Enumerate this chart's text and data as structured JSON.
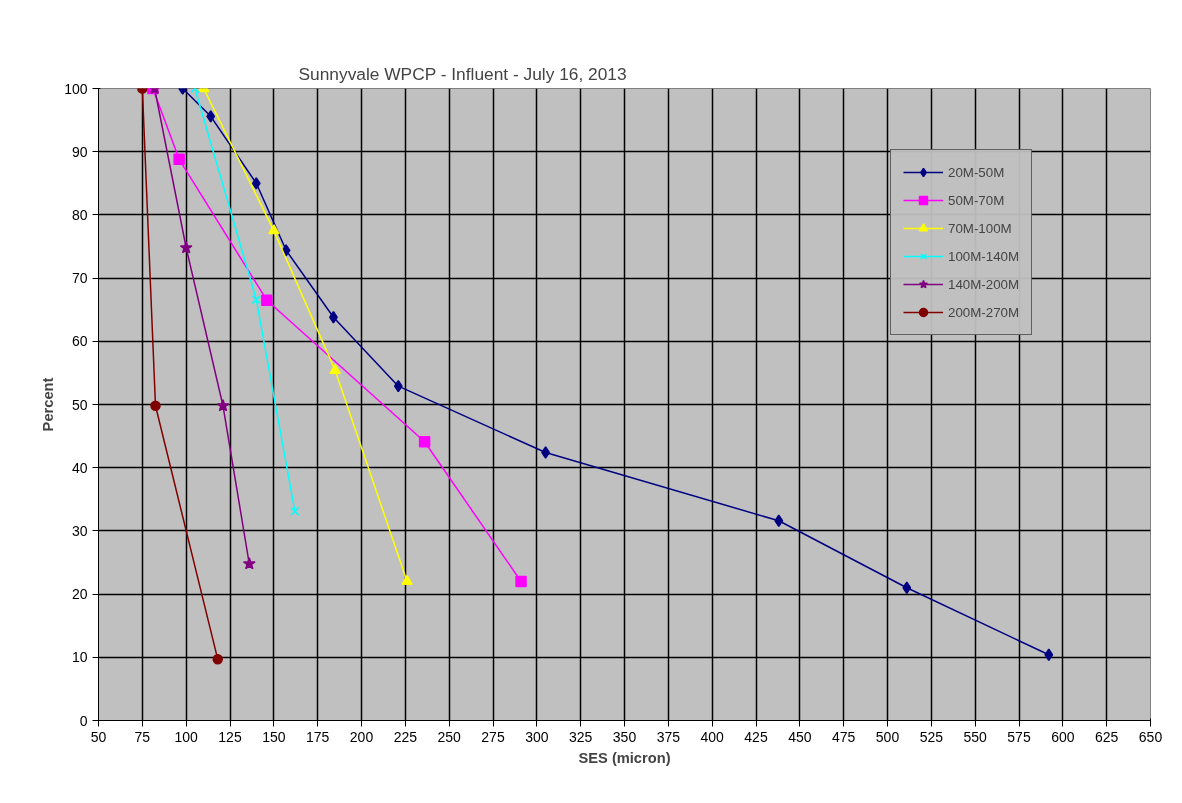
{
  "chart_data": {
    "type": "line",
    "title": "Sunnyvale WPCP - Influent - July 16, 2013",
    "xlabel": "SES (micron)",
    "ylabel": "Percent",
    "xlim": [
      50,
      650
    ],
    "xticks": [
      50,
      75,
      100,
      125,
      150,
      175,
      200,
      225,
      250,
      275,
      300,
      325,
      350,
      375,
      400,
      425,
      450,
      475,
      500,
      525,
      550,
      575,
      600,
      625,
      650
    ],
    "ylim": [
      0,
      100
    ],
    "yticks": [
      0,
      10,
      20,
      30,
      40,
      50,
      60,
      70,
      80,
      90,
      100
    ],
    "grid": true,
    "legend": "top right",
    "series": [
      {
        "name": "20M-50M",
        "color": "#000080",
        "marker": "diamond",
        "x": [
          98,
          114,
          140,
          157,
          184,
          221,
          305,
          438,
          511,
          592
        ],
        "values": [
          100,
          95.6,
          85,
          74.4,
          63.8,
          52.9,
          42.4,
          31.6,
          21,
          10.4
        ]
      },
      {
        "name": "50M-70M",
        "color": "#ff00ff",
        "marker": "square",
        "x": [
          81,
          96,
          146,
          236,
          291
        ],
        "values": [
          100,
          88.8,
          66.5,
          44.1,
          22
        ]
      },
      {
        "name": "70M-100M",
        "color": "#ffff00",
        "marker": "triangle",
        "x": [
          110,
          150,
          185,
          226
        ],
        "values": [
          100,
          77.5,
          55.4,
          22
        ]
      },
      {
        "name": "100M-140M",
        "color": "#00ffff",
        "marker": "cross",
        "x": [
          105,
          140,
          162
        ],
        "values": [
          100,
          66.6,
          33.1
        ]
      },
      {
        "name": "140M-200M",
        "color": "#800080",
        "marker": "star",
        "x": [
          82,
          100,
          121,
          136
        ],
        "values": [
          100,
          74.8,
          49.8,
          24.8
        ]
      },
      {
        "name": "200M-270M",
        "color": "#800000",
        "marker": "circle",
        "x": [
          75,
          82.5,
          118
        ],
        "values": [
          100,
          49.8,
          9.7
        ]
      }
    ]
  }
}
